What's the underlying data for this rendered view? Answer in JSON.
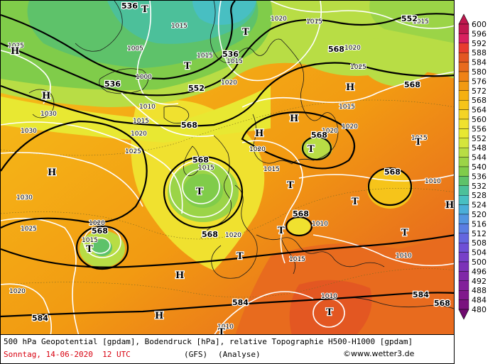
{
  "legend": {
    "values": [
      "600",
      "596",
      "592",
      "588",
      "584",
      "580",
      "576",
      "572",
      "568",
      "564",
      "560",
      "556",
      "552",
      "548",
      "544",
      "540",
      "536",
      "532",
      "528",
      "524",
      "520",
      "516",
      "512",
      "508",
      "504",
      "500",
      "496",
      "492",
      "488",
      "484",
      "480"
    ],
    "colors": [
      "#c0184f",
      "#d8215f",
      "#e83b2f",
      "#e35722",
      "#e86b1e",
      "#ef8216",
      "#f29a12",
      "#f5b010",
      "#f6c41a",
      "#f4d426",
      "#f0e12f",
      "#e8e832",
      "#d4e53c",
      "#b8dd45",
      "#9bd447",
      "#80cc4a",
      "#5ec26a",
      "#4cc09a",
      "#48bfc2",
      "#4aaed8",
      "#5296e0",
      "#5b7ee2",
      "#6466df",
      "#6e50d6",
      "#7740c8",
      "#7c32b8",
      "#8028a8",
      "#82209a",
      "#80188c",
      "#7a127e",
      "#700c70"
    ]
  },
  "map": {
    "pressure_labels": [
      "1015",
      "1015",
      "1015",
      "1015",
      "1015",
      "1005",
      "1000",
      "1010",
      "1015",
      "1020",
      "1020",
      "1025",
      "1030",
      "1030",
      "1030",
      "1025",
      "1020",
      "1020",
      "1015",
      "1010",
      "1015",
      "1020",
      "1020",
      "1015",
      "1020",
      "1025",
      "1020",
      "1015",
      "1020",
      "1015",
      "1010",
      "1010",
      "1015",
      "1010",
      "1010",
      "1020",
      "1025"
    ],
    "geopotential_labels": [
      "536",
      "536",
      "536",
      "552",
      "552",
      "568",
      "568",
      "568",
      "568",
      "568",
      "568",
      "568",
      "568",
      "568",
      "568",
      "584",
      "584",
      "584"
    ],
    "high_symbols": [
      "H",
      "H",
      "H",
      "H",
      "H",
      "H",
      "H",
      "H",
      "H"
    ],
    "low_symbols": [
      "T",
      "T",
      "T",
      "T",
      "T",
      "T",
      "T",
      "T",
      "T",
      "T",
      "T",
      "T",
      "T",
      "T"
    ]
  },
  "footer": {
    "line1": "500 hPa Geopotential [gpdam], Bodendruck [hPa], relative Topographie H500-H1000 [gpdam]",
    "date": "Sonntag, 14-06-2020  12 UTC",
    "model": "(GFS)",
    "analysis": "(Analyse)",
    "credit": "©www.wetter3.de"
  }
}
